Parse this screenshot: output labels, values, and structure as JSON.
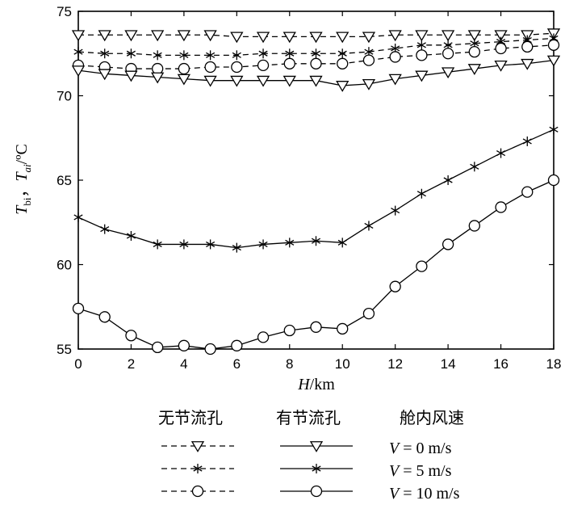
{
  "chart_data": {
    "type": "line",
    "xlabel_var": "H",
    "xlabel_unit": "/km",
    "ylabel_var1": "T",
    "ylabel_sub1": "bi",
    "ylabel_sep": "，",
    "ylabel_var2": "T",
    "ylabel_sub2": "ai",
    "ylabel_unit": "/ºC",
    "xlim": [
      0,
      18
    ],
    "ylim": [
      55,
      75
    ],
    "xticks": [
      0,
      2,
      4,
      6,
      8,
      10,
      12,
      14,
      16,
      18
    ],
    "yticks": [
      55,
      60,
      65,
      70,
      75
    ],
    "x": [
      0,
      1,
      2,
      3,
      4,
      5,
      6,
      7,
      8,
      9,
      10,
      11,
      12,
      13,
      14,
      15,
      16,
      17,
      18
    ],
    "legend": {
      "headers": [
        "无节流孔",
        "有节流孔",
        "舱内风速"
      ],
      "rows": [
        {
          "v_var": "V",
          "v_text": " = 0 m/s",
          "marker": "triangle"
        },
        {
          "v_var": "V",
          "v_text": " = 5 m/s",
          "marker": "star"
        },
        {
          "v_var": "V",
          "v_text": " = 10 m/s",
          "marker": "circle"
        }
      ]
    },
    "series": [
      {
        "group": "no-orifice",
        "wind": "0 m/s",
        "marker": "triangle",
        "dash": true,
        "values": [
          73.6,
          73.6,
          73.6,
          73.6,
          73.6,
          73.6,
          73.5,
          73.5,
          73.5,
          73.5,
          73.5,
          73.5,
          73.6,
          73.6,
          73.6,
          73.6,
          73.6,
          73.6,
          73.7
        ]
      },
      {
        "group": "no-orifice",
        "wind": "5 m/s",
        "marker": "star",
        "dash": true,
        "values": [
          72.6,
          72.5,
          72.5,
          72.4,
          72.4,
          72.4,
          72.4,
          72.5,
          72.5,
          72.5,
          72.5,
          72.6,
          72.8,
          73.0,
          73.0,
          73.1,
          73.2,
          73.3,
          73.4
        ]
      },
      {
        "group": "no-orifice",
        "wind": "10 m/s",
        "marker": "circle",
        "dash": true,
        "values": [
          71.8,
          71.7,
          71.6,
          71.6,
          71.6,
          71.7,
          71.7,
          71.8,
          71.9,
          71.9,
          71.9,
          72.1,
          72.3,
          72.4,
          72.5,
          72.6,
          72.8,
          72.9,
          73.0
        ]
      },
      {
        "group": "orifice",
        "wind": "0 m/s",
        "marker": "triangle",
        "dash": false,
        "values": [
          71.5,
          71.3,
          71.2,
          71.1,
          71.0,
          70.9,
          70.9,
          70.9,
          70.9,
          70.9,
          70.6,
          70.7,
          71.0,
          71.2,
          71.4,
          71.6,
          71.8,
          71.9,
          72.1
        ]
      },
      {
        "group": "orifice",
        "wind": "5 m/s",
        "marker": "star",
        "dash": false,
        "values": [
          62.8,
          62.1,
          61.7,
          61.2,
          61.2,
          61.2,
          61.0,
          61.2,
          61.3,
          61.4,
          61.3,
          62.3,
          63.2,
          64.2,
          65.0,
          65.8,
          66.6,
          67.3,
          68.0
        ]
      },
      {
        "group": "orifice",
        "wind": "10 m/s",
        "marker": "circle",
        "dash": false,
        "values": [
          57.4,
          56.9,
          55.8,
          55.1,
          55.2,
          55.0,
          55.2,
          55.7,
          56.1,
          56.3,
          56.2,
          57.1,
          58.7,
          59.9,
          61.2,
          62.3,
          63.4,
          64.3,
          65.0
        ]
      }
    ]
  }
}
